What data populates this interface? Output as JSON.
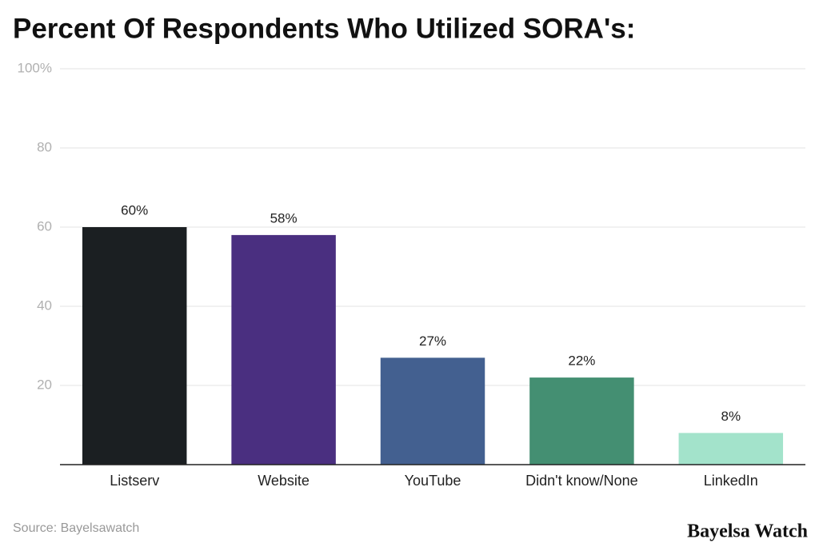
{
  "chart_data": {
    "type": "bar",
    "title": "Percent Of Respondents Who Utilized SORA's:",
    "categories": [
      "Listserv",
      "Website",
      "YouTube",
      "Didn't know/None",
      "LinkedIn"
    ],
    "values": [
      60,
      58,
      27,
      22,
      8
    ],
    "value_labels": [
      "60%",
      "58%",
      "27%",
      "22%",
      "8%"
    ],
    "colors": [
      "#1b1f22",
      "#4a2f80",
      "#436090",
      "#448f72",
      "#a3e3cb"
    ],
    "ylim": [
      0,
      100
    ],
    "yticks": [
      20,
      40,
      60,
      80,
      {
        "value": 100,
        "label": "100%"
      }
    ],
    "grid": true,
    "source": "Source: Bayelsawatch",
    "watermark": "Bayelsa Watch"
  }
}
